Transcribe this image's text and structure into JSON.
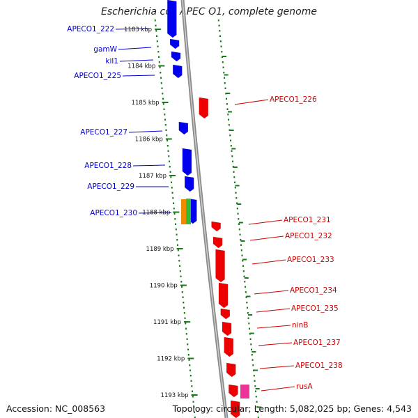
{
  "title": "Escherichia coli APEC O1, complete genome",
  "footer": {
    "accession": "Accession: NC_008563",
    "summary": "Topology: circular; Length: 5,082,025 bp; Genes: 4,543"
  },
  "colors": {
    "forward_gene": "#0000ee",
    "reverse_gene": "#ee0000",
    "label_forward": "#0000cc",
    "label_reverse": "#cc0000",
    "tick": "#1a7a1a",
    "backbone": "#8a8a8a",
    "orange_feature": "#f08a00",
    "green_feature": "#33bb33",
    "pink_feature": "#ee3399"
  },
  "ticks": [
    "1183 kbp",
    "1184 kbp",
    "1185 kbp",
    "1186 kbp",
    "1187 kbp",
    "1188 kbp",
    "1189 kbp",
    "1190 kbp",
    "1191 kbp",
    "1192 kbp",
    "1193 kbp"
  ],
  "forward_labels": [
    "APECO1_222",
    "gamW",
    "kil1",
    "APECO1_225",
    "APECO1_227",
    "APECO1_228",
    "APECO1_229",
    "APECO1_230"
  ],
  "reverse_labels": [
    "APECO1_226",
    "APECO1_231",
    "APECO1_232",
    "APECO1_233",
    "APECO1_234",
    "APECO1_235",
    "ninB",
    "APECO1_237",
    "APECO1_238",
    "rusA"
  ]
}
